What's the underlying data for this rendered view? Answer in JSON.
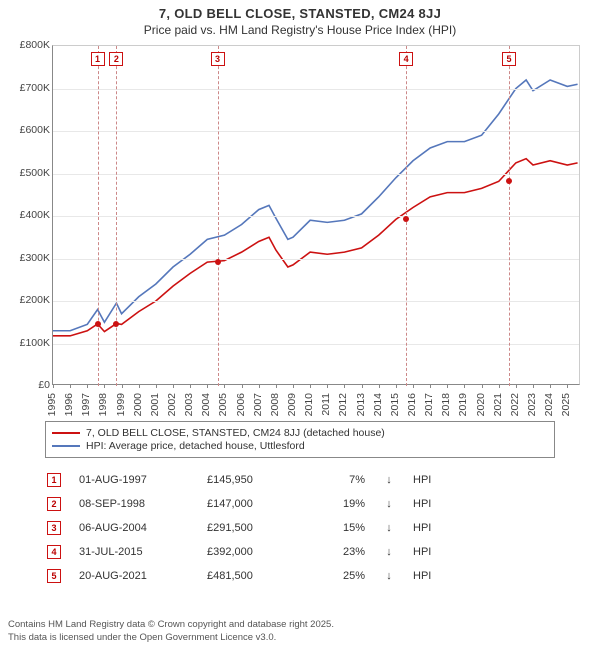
{
  "title": "7, OLD BELL CLOSE, STANSTED, CM24 8JJ",
  "subtitle": "Price paid vs. HM Land Registry's House Price Index (HPI)",
  "colors": {
    "series_property": "#cc1111",
    "series_hpi": "#5577bb",
    "grid": "#e8e8e8",
    "axis": "#888888",
    "marker_border": "#cc1111",
    "vline": "#cc8888",
    "background": "#ffffff",
    "text": "#333333"
  },
  "chart": {
    "type": "line",
    "xlim": [
      1995,
      2025.8
    ],
    "ylim": [
      0,
      800000
    ],
    "ytick_step": 100000,
    "y_ticks": [
      "£0",
      "£100K",
      "£200K",
      "£300K",
      "£400K",
      "£500K",
      "£600K",
      "£700K",
      "£800K"
    ],
    "x_ticks": [
      1995,
      1996,
      1997,
      1998,
      1999,
      2000,
      2001,
      2002,
      2003,
      2004,
      2005,
      2006,
      2007,
      2008,
      2009,
      2010,
      2011,
      2012,
      2013,
      2014,
      2015,
      2016,
      2017,
      2018,
      2019,
      2020,
      2021,
      2022,
      2023,
      2024,
      2025
    ],
    "line_width": 1.6,
    "series_hpi": [
      [
        1995,
        130000
      ],
      [
        1996,
        130000
      ],
      [
        1997,
        145000
      ],
      [
        1997.6,
        180000
      ],
      [
        1998,
        150000
      ],
      [
        1998.7,
        195000
      ],
      [
        1999,
        170000
      ],
      [
        2000,
        210000
      ],
      [
        2001,
        240000
      ],
      [
        2002,
        280000
      ],
      [
        2003,
        310000
      ],
      [
        2004,
        345000
      ],
      [
        2005,
        355000
      ],
      [
        2006,
        380000
      ],
      [
        2007,
        415000
      ],
      [
        2007.6,
        425000
      ],
      [
        2008,
        395000
      ],
      [
        2008.7,
        345000
      ],
      [
        2009,
        350000
      ],
      [
        2010,
        390000
      ],
      [
        2011,
        385000
      ],
      [
        2012,
        390000
      ],
      [
        2013,
        405000
      ],
      [
        2014,
        445000
      ],
      [
        2015,
        490000
      ],
      [
        2016,
        530000
      ],
      [
        2017,
        560000
      ],
      [
        2018,
        575000
      ],
      [
        2019,
        575000
      ],
      [
        2020,
        590000
      ],
      [
        2021,
        640000
      ],
      [
        2022,
        700000
      ],
      [
        2022.6,
        720000
      ],
      [
        2023,
        695000
      ],
      [
        2024,
        720000
      ],
      [
        2025,
        705000
      ],
      [
        2025.6,
        710000
      ]
    ],
    "series_property": [
      [
        1995,
        118000
      ],
      [
        1996,
        118000
      ],
      [
        1997,
        130000
      ],
      [
        1997.6,
        145950
      ],
      [
        1998,
        128000
      ],
      [
        1998.7,
        147000
      ],
      [
        1999,
        145000
      ],
      [
        2000,
        175000
      ],
      [
        2001,
        200000
      ],
      [
        2002,
        235000
      ],
      [
        2003,
        265000
      ],
      [
        2004,
        291500
      ],
      [
        2005,
        295000
      ],
      [
        2006,
        315000
      ],
      [
        2007,
        340000
      ],
      [
        2007.6,
        350000
      ],
      [
        2008,
        320000
      ],
      [
        2008.7,
        280000
      ],
      [
        2009,
        285000
      ],
      [
        2010,
        315000
      ],
      [
        2011,
        310000
      ],
      [
        2012,
        315000
      ],
      [
        2013,
        325000
      ],
      [
        2014,
        355000
      ],
      [
        2015,
        392000
      ],
      [
        2016,
        420000
      ],
      [
        2017,
        445000
      ],
      [
        2018,
        455000
      ],
      [
        2019,
        455000
      ],
      [
        2020,
        465000
      ],
      [
        2021,
        481500
      ],
      [
        2022,
        525000
      ],
      [
        2022.6,
        535000
      ],
      [
        2023,
        520000
      ],
      [
        2024,
        530000
      ],
      [
        2025,
        520000
      ],
      [
        2025.6,
        525000
      ]
    ],
    "markers": [
      {
        "n": "1",
        "x": 1997.6,
        "y": 145950
      },
      {
        "n": "2",
        "x": 1998.7,
        "y": 147000
      },
      {
        "n": "3",
        "x": 2004.6,
        "y": 291500
      },
      {
        "n": "4",
        "x": 2015.6,
        "y": 392000
      },
      {
        "n": "5",
        "x": 2021.6,
        "y": 481500
      }
    ]
  },
  "legend": {
    "items": [
      {
        "color": "#cc1111",
        "label": "7, OLD BELL CLOSE, STANSTED, CM24 8JJ (detached house)"
      },
      {
        "color": "#5577bb",
        "label": "HPI: Average price, detached house, Uttlesford"
      }
    ]
  },
  "transactions": [
    {
      "n": "1",
      "date": "01-AUG-1997",
      "price": "£145,950",
      "pct": "7%",
      "arrow": "↓",
      "suffix": "HPI"
    },
    {
      "n": "2",
      "date": "08-SEP-1998",
      "price": "£147,000",
      "pct": "19%",
      "arrow": "↓",
      "suffix": "HPI"
    },
    {
      "n": "3",
      "date": "06-AUG-2004",
      "price": "£291,500",
      "pct": "15%",
      "arrow": "↓",
      "suffix": "HPI"
    },
    {
      "n": "4",
      "date": "31-JUL-2015",
      "price": "£392,000",
      "pct": "23%",
      "arrow": "↓",
      "suffix": "HPI"
    },
    {
      "n": "5",
      "date": "20-AUG-2021",
      "price": "£481,500",
      "pct": "25%",
      "arrow": "↓",
      "suffix": "HPI"
    }
  ],
  "footer_line1": "Contains HM Land Registry data © Crown copyright and database right 2025.",
  "footer_line2": "This data is licensed under the Open Government Licence v3.0."
}
